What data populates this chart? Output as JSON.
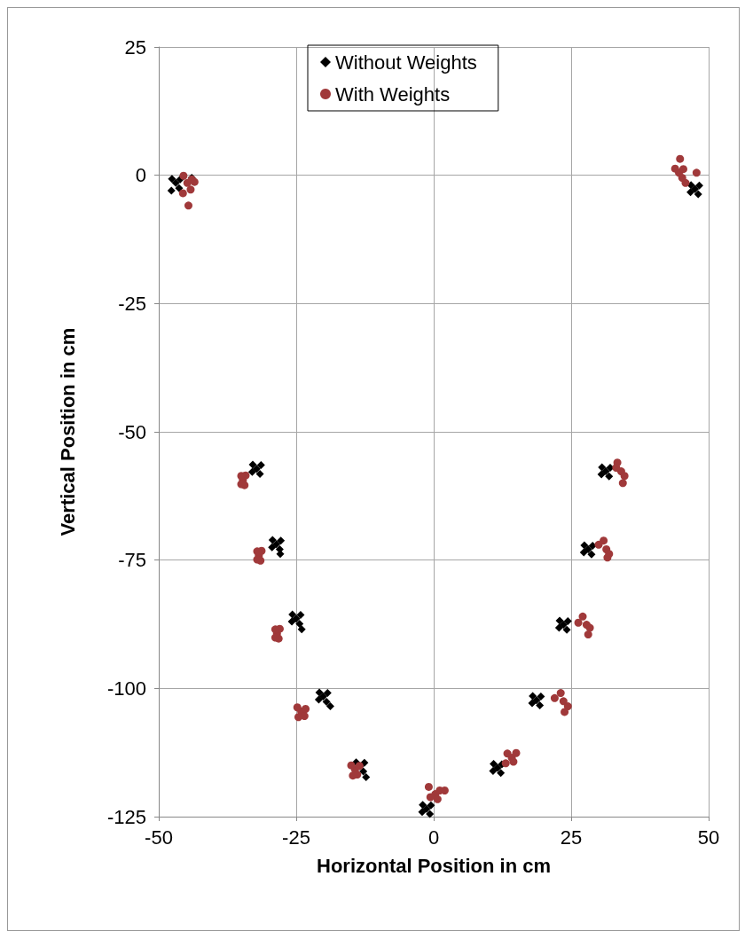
{
  "chart_data": {
    "type": "scatter",
    "xlabel": "Horizontal Position in cm",
    "ylabel": "Vertical Position in cm",
    "xlim": [
      -50,
      50
    ],
    "xticks": [
      -50,
      -25,
      0,
      25,
      50
    ],
    "ylim": [
      -125,
      25
    ],
    "yticks": [
      -125,
      -100,
      -75,
      -50,
      -25,
      0,
      25
    ],
    "grid": true,
    "legend": "top",
    "series": [
      {
        "name": "Without Weights",
        "color": "#000000",
        "marker": "diamond",
        "x": [
          -46.9,
          -46.1,
          -47.6,
          -46.3,
          -47.7,
          -44.0,
          47.5,
          48.3,
          46.8,
          48.1,
          46.7,
          -32.2,
          -31.4,
          -32.9,
          -31.6,
          -33.0,
          -28.6,
          -27.8,
          -29.3,
          -28.0,
          -29.4,
          -27.9,
          -25.0,
          -24.2,
          -25.7,
          -24.4,
          -25.8,
          -24.0,
          -20.1,
          -19.3,
          -20.8,
          -19.5,
          -20.9,
          -18.8,
          -13.4,
          -12.6,
          -14.1,
          -12.8,
          -12.3,
          -1.3,
          -0.5,
          -2.0,
          -0.7,
          -2.1,
          31.3,
          32.1,
          30.6,
          31.9,
          30.5,
          28.1,
          28.9,
          27.4,
          28.7,
          27.3,
          23.6,
          24.4,
          22.9,
          24.2,
          22.8,
          18.7,
          19.5,
          18.0,
          19.3,
          17.9,
          11.6,
          12.4,
          10.9,
          12.2,
          10.8
        ],
        "values": [
          -1.5,
          -0.8,
          -0.7,
          -2.5,
          -3.0,
          -0.5,
          -2.7,
          -2.0,
          -1.9,
          -3.7,
          -3.3,
          -57.2,
          -56.5,
          -56.4,
          -58.2,
          -57.8,
          -71.9,
          -71.2,
          -71.1,
          -72.9,
          -72.5,
          -73.8,
          -86.4,
          -85.7,
          -85.6,
          -87.4,
          -87.0,
          -88.5,
          -101.6,
          -100.9,
          -100.8,
          -102.6,
          -102.2,
          -103.5,
          -115.2,
          -114.5,
          -114.4,
          -116.2,
          -117.3,
          -123.5,
          -122.8,
          -122.7,
          -124.5,
          -124.1,
          -57.7,
          -57.0,
          -56.9,
          -58.7,
          -58.3,
          -72.9,
          -72.2,
          -72.1,
          -73.9,
          -73.5,
          -87.6,
          -86.9,
          -86.8,
          -88.6,
          -88.2,
          -102.3,
          -101.6,
          -101.5,
          -103.3,
          -102.9,
          -115.5,
          -114.8,
          -114.7,
          -116.5,
          -116.1
        ]
      },
      {
        "name": "With Weights",
        "color": "#a0393a",
        "marker": "circle",
        "x": [
          -44.8,
          -44.0,
          -45.5,
          -44.2,
          -45.6,
          -44.6,
          -43.5,
          44.6,
          45.4,
          43.9,
          45.2,
          44.8,
          47.8,
          45.8,
          -34.7,
          -34.2,
          -35.0,
          -34.4,
          -35.0,
          -31.8,
          -31.3,
          -32.1,
          -31.5,
          -32.1,
          -28.5,
          -28.0,
          -28.8,
          -28.2,
          -28.8,
          -24.1,
          -23.3,
          -24.8,
          -23.5,
          -24.6,
          -14.3,
          -13.5,
          -15.0,
          -13.9,
          -14.7,
          0.3,
          1.1,
          -0.9,
          0.7,
          -0.6,
          2.0,
          34.1,
          33.4,
          34.7,
          33.2,
          34.4,
          31.4,
          30.9,
          31.9,
          31.6,
          30.0,
          27.8,
          27.1,
          28.4,
          28.1,
          26.3,
          23.6,
          23.1,
          24.4,
          23.8,
          22.0,
          14.2,
          13.4,
          15.0,
          13.1,
          14.5
        ],
        "values": [
          -1.5,
          -0.8,
          -0.1,
          -2.8,
          -3.5,
          -5.9,
          -1.3,
          0.5,
          1.2,
          1.3,
          -0.5,
          3.2,
          0.5,
          -1.5,
          -59.4,
          -58.5,
          -58.6,
          -60.4,
          -60.2,
          -74.1,
          -73.2,
          -73.3,
          -75.1,
          -74.9,
          -89.3,
          -88.4,
          -88.5,
          -90.3,
          -90.1,
          -104.5,
          -104.0,
          -103.7,
          -105.4,
          -105.6,
          -115.8,
          -115.1,
          -115.0,
          -116.8,
          -117.0,
          -120.6,
          -119.9,
          -119.2,
          -121.6,
          -121.2,
          -119.9,
          -57.7,
          -56.0,
          -58.6,
          -57.0,
          -60.0,
          -72.9,
          -71.2,
          -73.8,
          -74.5,
          -72.0,
          -87.6,
          -86.0,
          -88.2,
          -89.5,
          -87.2,
          -102.5,
          -100.9,
          -103.5,
          -104.6,
          -101.9,
          -113.5,
          -112.7,
          -112.6,
          -114.6,
          -114.3
        ]
      }
    ]
  }
}
